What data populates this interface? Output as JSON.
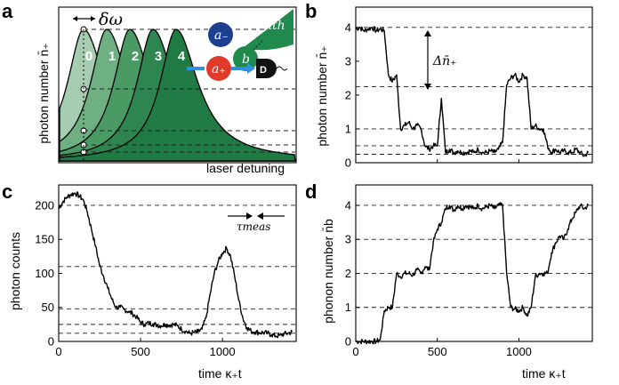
{
  "panels": {
    "a": {
      "label": "a",
      "ylabel": "photon number n̄₊",
      "xlabel": "laser detuning",
      "delta_omega": "δω",
      "peak_labels": [
        "0",
        "1",
        "2",
        "3",
        "4"
      ],
      "inset": {
        "a_minus": "a₋",
        "b": "b",
        "a_plus": "a₊",
        "n_th": "nth",
        "detector": "D"
      }
    },
    "b": {
      "label": "b",
      "ylabel": "photon number n̄₊",
      "annotation": "Δn̄₊"
    },
    "c": {
      "label": "c",
      "ylabel": "photon counts",
      "xlabel": "time κ₊t",
      "annotation": "τmeas"
    },
    "d": {
      "label": "d",
      "ylabel": "phonon number n̄b",
      "xlabel": "time κ₊t"
    }
  },
  "colors": {
    "peak_0": "#a6cdb0",
    "peak_1": "#6fb083",
    "peak_2": "#4a9a64",
    "peak_3": "#2f8550",
    "peak_4": "#1f7a44",
    "a_minus": "#1c3f8f",
    "b": "#1f8a4c",
    "a_plus": "#e03a2a",
    "n_th": "#1f8a4c",
    "arrow": "#2f8fe0",
    "detector": "#111111"
  },
  "chart_data": [
    {
      "panel": "b",
      "type": "line",
      "x": [
        0,
        25,
        50,
        75,
        100,
        125,
        150,
        175,
        200,
        225,
        250,
        275,
        300,
        325,
        350,
        375,
        400,
        425,
        450,
        475,
        500,
        525,
        550,
        575,
        600,
        625,
        650,
        675,
        700,
        725,
        750,
        775,
        800,
        825,
        850,
        875,
        900,
        925,
        950,
        975,
        1000,
        1025,
        1050,
        1075,
        1100,
        1125,
        1150,
        1175,
        1200,
        1225,
        1250,
        1275,
        1300,
        1325,
        1350,
        1375,
        1400,
        1425
      ],
      "values": [
        3.95,
        4.0,
        3.9,
        3.95,
        4.0,
        3.9,
        3.95,
        3.9,
        2.6,
        2.4,
        2.6,
        1.0,
        1.1,
        1.2,
        1.0,
        1.1,
        1.0,
        0.5,
        0.4,
        0.5,
        0.5,
        1.9,
        0.3,
        0.4,
        0.3,
        0.35,
        0.3,
        0.3,
        0.35,
        0.3,
        0.4,
        0.3,
        0.3,
        0.35,
        0.3,
        0.4,
        0.6,
        2.3,
        2.5,
        2.6,
        2.4,
        2.6,
        2.5,
        1.0,
        1.1,
        1.0,
        1.0,
        0.5,
        0.3,
        0.4,
        0.3,
        0.35,
        0.3,
        0.3,
        0.4,
        0.3,
        0.2,
        0.3
      ],
      "xlim": [
        0,
        1450
      ],
      "ylim": [
        0,
        4.6
      ],
      "yticks": [
        "0",
        "1",
        "2",
        "3",
        "4"
      ],
      "dashed_levels": [
        0.25,
        0.5,
        1,
        2.25,
        4
      ]
    },
    {
      "panel": "c",
      "type": "line",
      "x": [
        0,
        25,
        50,
        75,
        100,
        125,
        150,
        175,
        200,
        225,
        250,
        275,
        300,
        325,
        350,
        375,
        400,
        425,
        450,
        475,
        500,
        525,
        550,
        575,
        600,
        625,
        650,
        675,
        700,
        725,
        750,
        775,
        800,
        825,
        850,
        875,
        900,
        925,
        950,
        975,
        1000,
        1025,
        1050,
        1075,
        1100,
        1125,
        1150,
        1175,
        1200,
        1225,
        1250,
        1275,
        1300,
        1325,
        1350,
        1375,
        1400,
        1425
      ],
      "values": [
        195,
        205,
        212,
        216,
        218,
        214,
        208,
        190,
        165,
        140,
        112,
        95,
        78,
        62,
        50,
        50,
        47,
        44,
        41,
        36,
        28,
        25,
        27,
        26,
        24,
        23,
        25,
        24,
        25,
        23,
        18,
        15,
        12,
        13,
        14,
        18,
        35,
        70,
        100,
        118,
        130,
        137,
        125,
        95,
        60,
        34,
        20,
        15,
        14,
        13,
        13,
        12,
        10,
        8,
        9,
        11,
        12,
        14
      ],
      "xlim": [
        0,
        1450
      ],
      "ylim": [
        0,
        230
      ],
      "xticks": [
        "0",
        "500",
        "1000"
      ],
      "yticks": [
        "0",
        "50",
        "100",
        "150",
        "200"
      ],
      "dashed_levels": [
        12,
        25,
        48,
        110,
        200
      ]
    },
    {
      "panel": "d",
      "type": "line",
      "x": [
        0,
        25,
        50,
        75,
        100,
        125,
        150,
        175,
        200,
        225,
        250,
        275,
        300,
        325,
        350,
        375,
        400,
        425,
        450,
        475,
        500,
        525,
        550,
        575,
        600,
        625,
        650,
        675,
        700,
        725,
        750,
        775,
        800,
        825,
        850,
        875,
        900,
        925,
        950,
        975,
        1000,
        1025,
        1050,
        1075,
        1100,
        1125,
        1150,
        1175,
        1200,
        1225,
        1250,
        1275,
        1300,
        1325,
        1350,
        1375,
        1400,
        1425
      ],
      "values": [
        0,
        0,
        0,
        0,
        0,
        0,
        0.05,
        0.9,
        1.0,
        1.0,
        2.0,
        1.9,
        2.0,
        2.0,
        1.95,
        2.1,
        2.0,
        2.2,
        2.1,
        2.9,
        3.3,
        3.5,
        3.9,
        4.0,
        3.85,
        4.0,
        3.9,
        4.0,
        3.95,
        3.9,
        4.0,
        3.9,
        3.95,
        4.0,
        3.9,
        4.0,
        4.0,
        2.0,
        1.0,
        0.95,
        0.9,
        1.0,
        0.75,
        1.0,
        1.9,
        2.0,
        2.0,
        2.0,
        2.6,
        2.9,
        3.1,
        3.0,
        3.3,
        3.6,
        3.8,
        4.0,
        3.9,
        4.0
      ],
      "xlim": [
        0,
        1450
      ],
      "ylim": [
        0,
        4.6
      ],
      "xticks": [
        "0",
        "500",
        "1000"
      ],
      "yticks": [
        "0",
        "1",
        "2",
        "3",
        "4"
      ],
      "dashed_levels": [
        1,
        2,
        3,
        4
      ]
    }
  ]
}
